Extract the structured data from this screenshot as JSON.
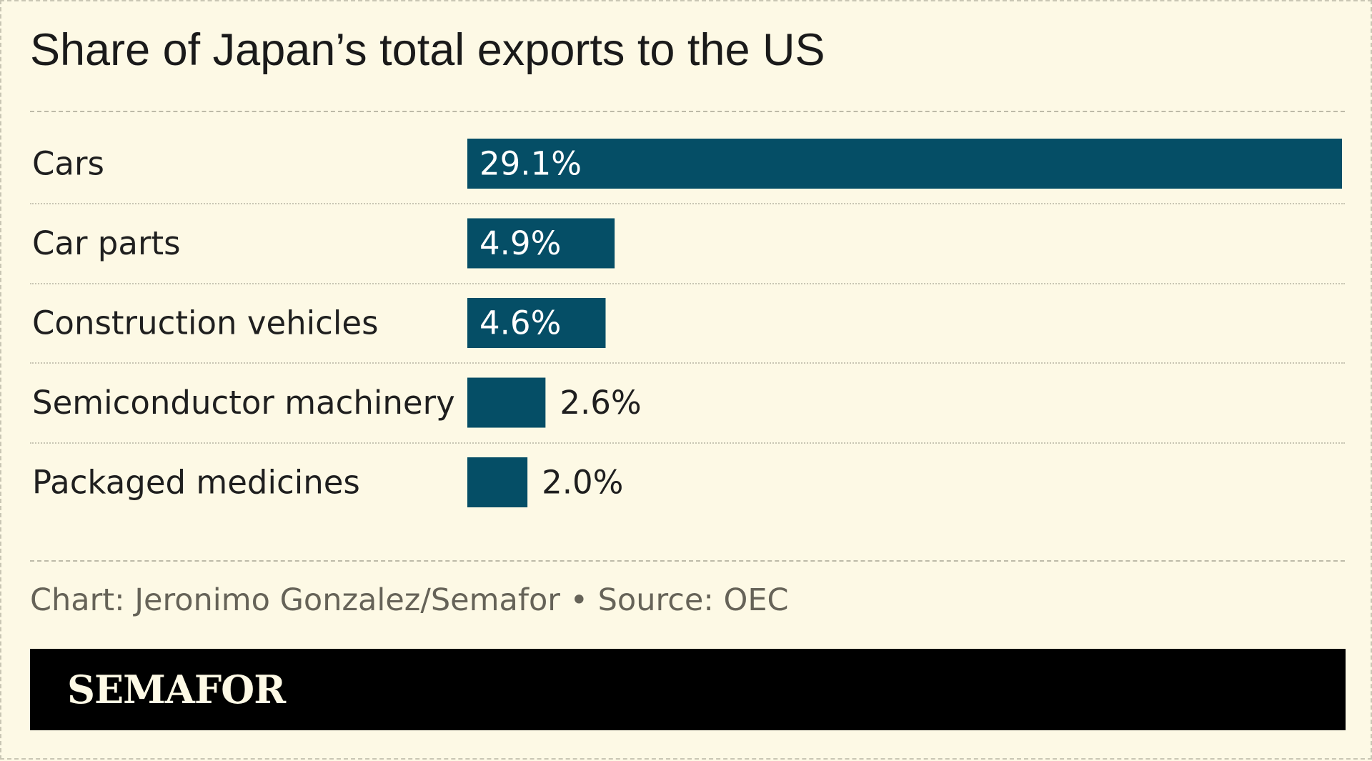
{
  "title": "Share of Japan’s total exports to the US",
  "footer": {
    "credit": "Chart: Jeronimo Gonzalez/Semafor • Source: OEC"
  },
  "brand": {
    "logo_text": "SEMAFOR",
    "bar_color": "#000000",
    "logo_color": "#fdf9e5"
  },
  "colors": {
    "background": "#fdf9e5",
    "bar": "#054e66",
    "label_inside": "#ffffff",
    "label_outside": "#1f1f1f"
  },
  "chart_data": {
    "type": "bar",
    "orientation": "horizontal",
    "title": "Share of Japan’s total exports to the US",
    "categories": [
      "Cars",
      "Car parts",
      "Construction vehicles",
      "Semiconductor machinery",
      "Packaged medicines"
    ],
    "values": [
      29.1,
      4.9,
      4.6,
      2.6,
      2.0
    ],
    "value_labels": [
      "29.1%",
      "4.9%",
      "4.6%",
      "2.6%",
      "2.0%"
    ],
    "unit": "%",
    "xlim": [
      0,
      29.1
    ],
    "grid": false,
    "legend": "none"
  }
}
